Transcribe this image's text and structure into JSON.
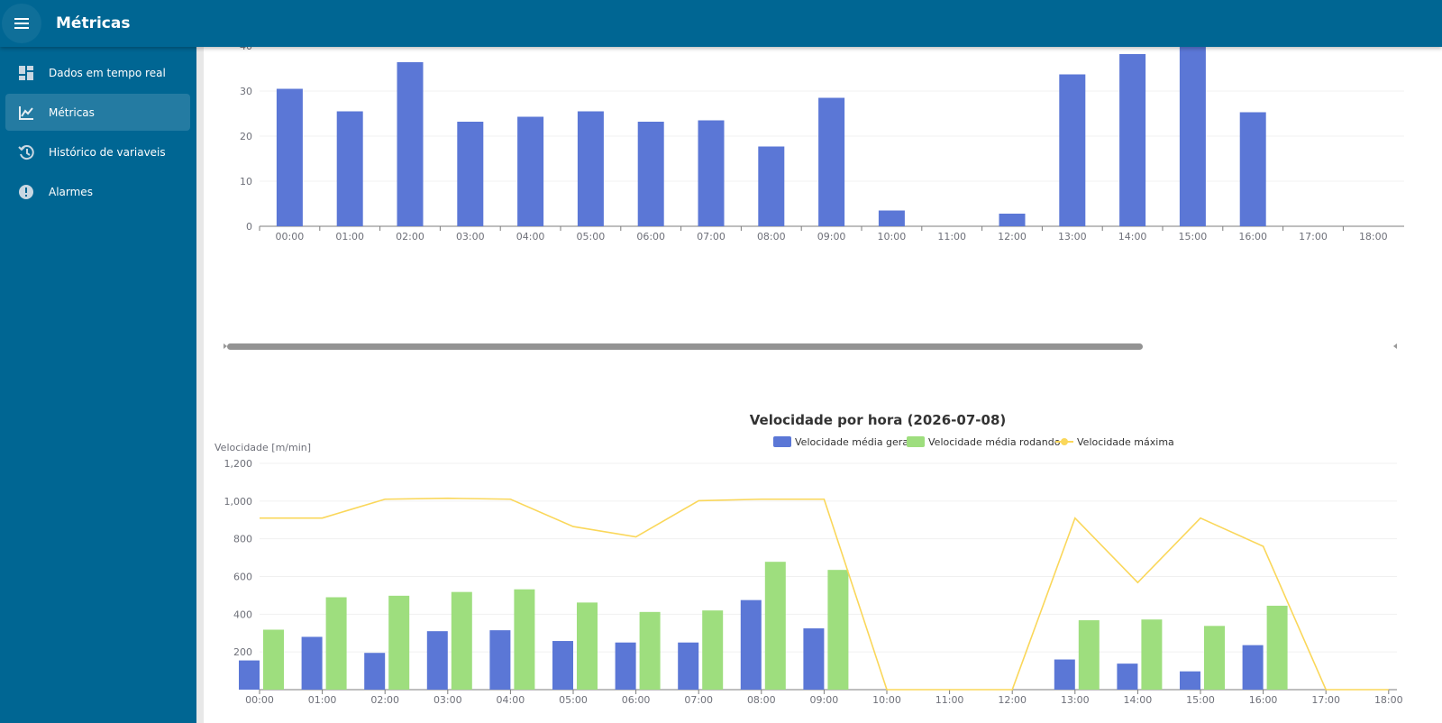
{
  "appbar": {
    "title": "Métricas",
    "menu_icon": "menu-icon"
  },
  "sidebar": {
    "items": [
      {
        "label": "Dados em tempo real",
        "icon": "dashboard-icon",
        "active": false
      },
      {
        "label": "Métricas",
        "icon": "chart-icon",
        "active": true
      },
      {
        "label": "Histórico de variaveis",
        "icon": "history-icon",
        "active": false
      },
      {
        "label": "Alarmes",
        "icon": "alert-icon",
        "active": false
      }
    ]
  },
  "chart_data": [
    {
      "type": "bar",
      "title": "",
      "categories": [
        "00:00",
        "01:00",
        "02:00",
        "03:00",
        "04:00",
        "05:00",
        "06:00",
        "07:00",
        "08:00",
        "09:00",
        "10:00",
        "11:00",
        "12:00",
        "13:00",
        "14:00",
        "15:00",
        "16:00",
        "17:00",
        "18:00"
      ],
      "series": [
        {
          "color": "#5b77d6",
          "values": [
            30.5,
            25.5,
            36.4,
            23.2,
            24.3,
            25.5,
            23.2,
            23.5,
            17.7,
            28.5,
            3.5,
            0,
            2.8,
            33.7,
            38.2,
            40,
            25.3,
            0,
            0
          ]
        }
      ],
      "yticks": [
        0,
        10,
        20,
        30,
        40
      ],
      "ylim": [
        0,
        40
      ],
      "grid": true,
      "scrollbar": true
    },
    {
      "type": "bar",
      "title": "Velocidade por hora (2026-07-08)",
      "ylabel": "Velocidade [m/min]",
      "categories": [
        "00:00",
        "01:00",
        "02:00",
        "03:00",
        "04:00",
        "05:00",
        "06:00",
        "07:00",
        "08:00",
        "09:00",
        "10:00",
        "11:00",
        "12:00",
        "13:00",
        "14:00",
        "15:00",
        "16:00",
        "17:00",
        "18:00"
      ],
      "series": [
        {
          "name": "Velocidade média geral",
          "type": "bar",
          "color": "#5b77d6",
          "values": [
            155,
            280,
            195,
            310,
            315,
            258,
            250,
            250,
            475,
            325,
            0,
            0,
            0,
            160,
            138,
            97,
            236,
            0,
            0
          ]
        },
        {
          "name": "Velocidade média rodando",
          "type": "bar",
          "color": "#9ede7e",
          "values": [
            318,
            490,
            498,
            518,
            532,
            462,
            412,
            420,
            678,
            635,
            0,
            0,
            0,
            368,
            372,
            338,
            445,
            0,
            0
          ]
        },
        {
          "name": "Velocidade máxima",
          "type": "line",
          "color": "#fad75a",
          "values": [
            910,
            910,
            1010,
            1015,
            1010,
            865,
            810,
            1002,
            1010,
            1010,
            0,
            0,
            0,
            910,
            568,
            910,
            760,
            0,
            0
          ]
        }
      ],
      "yticks": [
        "",
        "200",
        "400",
        "600",
        "800",
        "1,000",
        "1,200"
      ],
      "ylim": [
        0,
        1200
      ],
      "legend": "top-center",
      "grid": true
    }
  ]
}
